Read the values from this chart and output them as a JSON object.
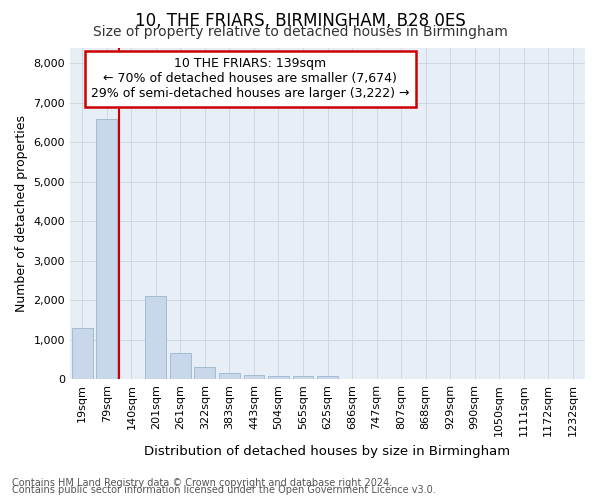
{
  "title": "10, THE FRIARS, BIRMINGHAM, B28 0ES",
  "subtitle": "Size of property relative to detached houses in Birmingham",
  "xlabel": "Distribution of detached houses by size in Birmingham",
  "ylabel": "Number of detached properties",
  "footnote1": "Contains HM Land Registry data © Crown copyright and database right 2024.",
  "footnote2": "Contains public sector information licensed under the Open Government Licence v3.0.",
  "annotation_line1": "10 THE FRIARS: 139sqm",
  "annotation_line2": "← 70% of detached houses are smaller (7,674)",
  "annotation_line3": "29% of semi-detached houses are larger (3,222) →",
  "bar_color": "#c8d8ea",
  "bar_edge_color": "#90aec8",
  "redline_color": "#cc0000",
  "annotation_box_edgecolor": "#cc0000",
  "background_color": "#ffffff",
  "plot_bg_color": "#e8eef5",
  "grid_color": "#c8d4e0",
  "categories": [
    "19sqm",
    "79sqm",
    "140sqm",
    "201sqm",
    "261sqm",
    "322sqm",
    "383sqm",
    "443sqm",
    "504sqm",
    "565sqm",
    "625sqm",
    "686sqm",
    "747sqm",
    "807sqm",
    "868sqm",
    "929sqm",
    "990sqm",
    "1050sqm",
    "1111sqm",
    "1172sqm",
    "1232sqm"
  ],
  "values": [
    1300,
    6600,
    0,
    2100,
    660,
    300,
    150,
    100,
    80,
    80,
    80,
    0,
    0,
    0,
    0,
    0,
    0,
    0,
    0,
    0,
    0
  ],
  "ylim": [
    0,
    8400
  ],
  "yticks": [
    0,
    1000,
    2000,
    3000,
    4000,
    5000,
    6000,
    7000,
    8000
  ],
  "red_line_x": 1.5,
  "title_fontsize": 12,
  "subtitle_fontsize": 10,
  "xlabel_fontsize": 9.5,
  "ylabel_fontsize": 9,
  "tick_fontsize": 8,
  "annotation_fontsize": 9,
  "footnote_fontsize": 7
}
